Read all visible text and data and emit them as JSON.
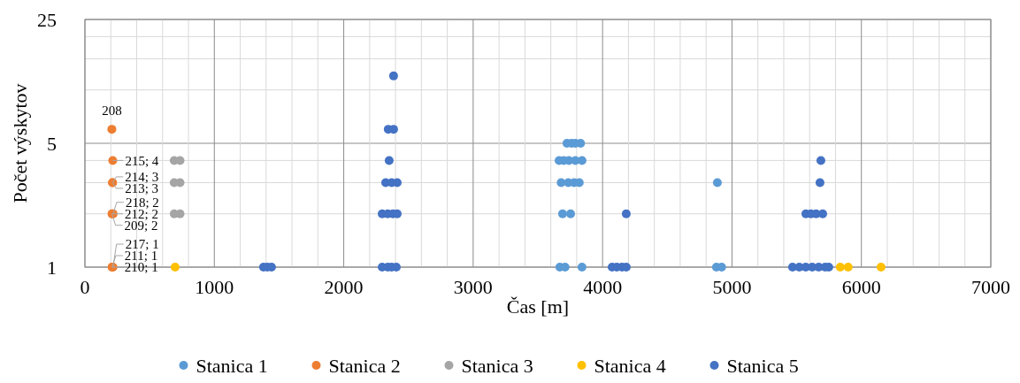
{
  "chart_data": {
    "type": "scatter",
    "xlabel": "Čas [m]",
    "ylabel": "Počet výskytov",
    "log": "y",
    "marker": "circle",
    "legend": "bottom",
    "grid": true,
    "annotations": [
      {
        "text": "208",
        "x": 208,
        "y": 6
      }
    ],
    "xlim": [
      0,
      7000
    ],
    "xticks": [
      0,
      {
        "value": 200,
        "label": null
      },
      {
        "value": 400,
        "label": null
      },
      {
        "value": 600,
        "label": null
      },
      {
        "value": 800,
        "label": null
      },
      1000,
      {
        "value": 1200,
        "label": null
      },
      {
        "value": 1400,
        "label": null
      },
      {
        "value": 1600,
        "label": null
      },
      {
        "value": 1800,
        "label": null
      },
      2000,
      {
        "value": 2200,
        "label": null
      },
      {
        "value": 2400,
        "label": null
      },
      {
        "value": 2600,
        "label": null
      },
      {
        "value": 2800,
        "label": null
      },
      3000,
      {
        "value": 3200,
        "label": null
      },
      {
        "value": 3400,
        "label": null
      },
      {
        "value": 3600,
        "label": null
      },
      {
        "value": 3800,
        "label": null
      },
      4000,
      {
        "value": 4200,
        "label": null
      },
      {
        "value": 4400,
        "label": null
      },
      {
        "value": 4600,
        "label": null
      },
      {
        "value": 4800,
        "label": null
      },
      5000,
      {
        "value": 5200,
        "label": null
      },
      {
        "value": 5400,
        "label": null
      },
      {
        "value": 5600,
        "label": null
      },
      {
        "value": 5800,
        "label": null
      },
      6000,
      {
        "value": 6200,
        "label": null
      },
      {
        "value": 6400,
        "label": null
      },
      {
        "value": 6600,
        "label": null
      },
      {
        "value": 6800,
        "label": null
      },
      7000
    ],
    "ylim": [
      1,
      25
    ],
    "yticks": [
      1,
      {
        "value": 2,
        "label": null
      },
      {
        "value": 3,
        "label": null
      },
      {
        "value": 4,
        "label": null
      },
      5,
      {
        "value": 10,
        "label": null
      },
      {
        "value": 15,
        "label": null
      },
      {
        "value": 20,
        "label": null
      },
      25
    ],
    "series": [
      {
        "name": "Stanica 1",
        "color": "#5b9bd5",
        "x": [
          3725,
          3760,
          3790,
          3830,
          3664,
          3700,
          3740,
          3790,
          3841,
          3680,
          3735,
          3780,
          3820,
          4887,
          3691,
          3753,
          3670,
          3710,
          3841,
          4880,
          4920
        ],
        "values": [
          5,
          5,
          5,
          5,
          4,
          4,
          4,
          4,
          4,
          3,
          3,
          3,
          3,
          3,
          2,
          2,
          1,
          1,
          1,
          1,
          1
        ]
      },
      {
        "name": "Stanica 2",
        "color": "#ed7d31",
        "x": [
          208,
          215,
          214,
          213,
          218,
          212,
          209,
          217,
          211,
          210
        ],
        "values": [
          6,
          4,
          3,
          3,
          2,
          2,
          2,
          1,
          1,
          1
        ],
        "value_labels": [
          null,
          "215; 4",
          "214; 3",
          "213; 3",
          "218; 2",
          "212; 2",
          "209; 2",
          "217; 1",
          "211; 1",
          "210; 1"
        ]
      },
      {
        "name": "Stanica 3",
        "color": "#a5a5a5",
        "x": [
          690,
          735,
          690,
          735,
          690,
          735
        ],
        "values": [
          4,
          4,
          3,
          3,
          2,
          2
        ]
      },
      {
        "name": "Stanica 4",
        "color": "#ffc000",
        "x": [
          697,
          5837,
          5898,
          6152
        ],
        "values": [
          1,
          1,
          1,
          1
        ]
      },
      {
        "name": "Stanica 5",
        "color": "#4472c4",
        "x": [
          2385,
          2344,
          2385,
          2351,
          2324,
          2370,
          2413,
          2297,
          2340,
          2380,
          2413,
          1380,
          1410,
          1442,
          2297,
          2340,
          2370,
          2406,
          4074,
          4110,
          4150,
          4183,
          4183,
          5687,
          5680,
          5571,
          5610,
          5650,
          5701,
          5468,
          5520,
          5570,
          5620,
          5670,
          5720,
          5748
        ],
        "values": [
          12,
          6,
          6,
          4,
          3,
          3,
          3,
          2,
          2,
          2,
          2,
          1,
          1,
          1,
          1,
          1,
          1,
          1,
          1,
          1,
          1,
          1,
          2,
          4,
          3,
          2,
          2,
          2,
          2,
          1,
          1,
          1,
          1,
          1,
          1,
          1
        ]
      }
    ]
  }
}
